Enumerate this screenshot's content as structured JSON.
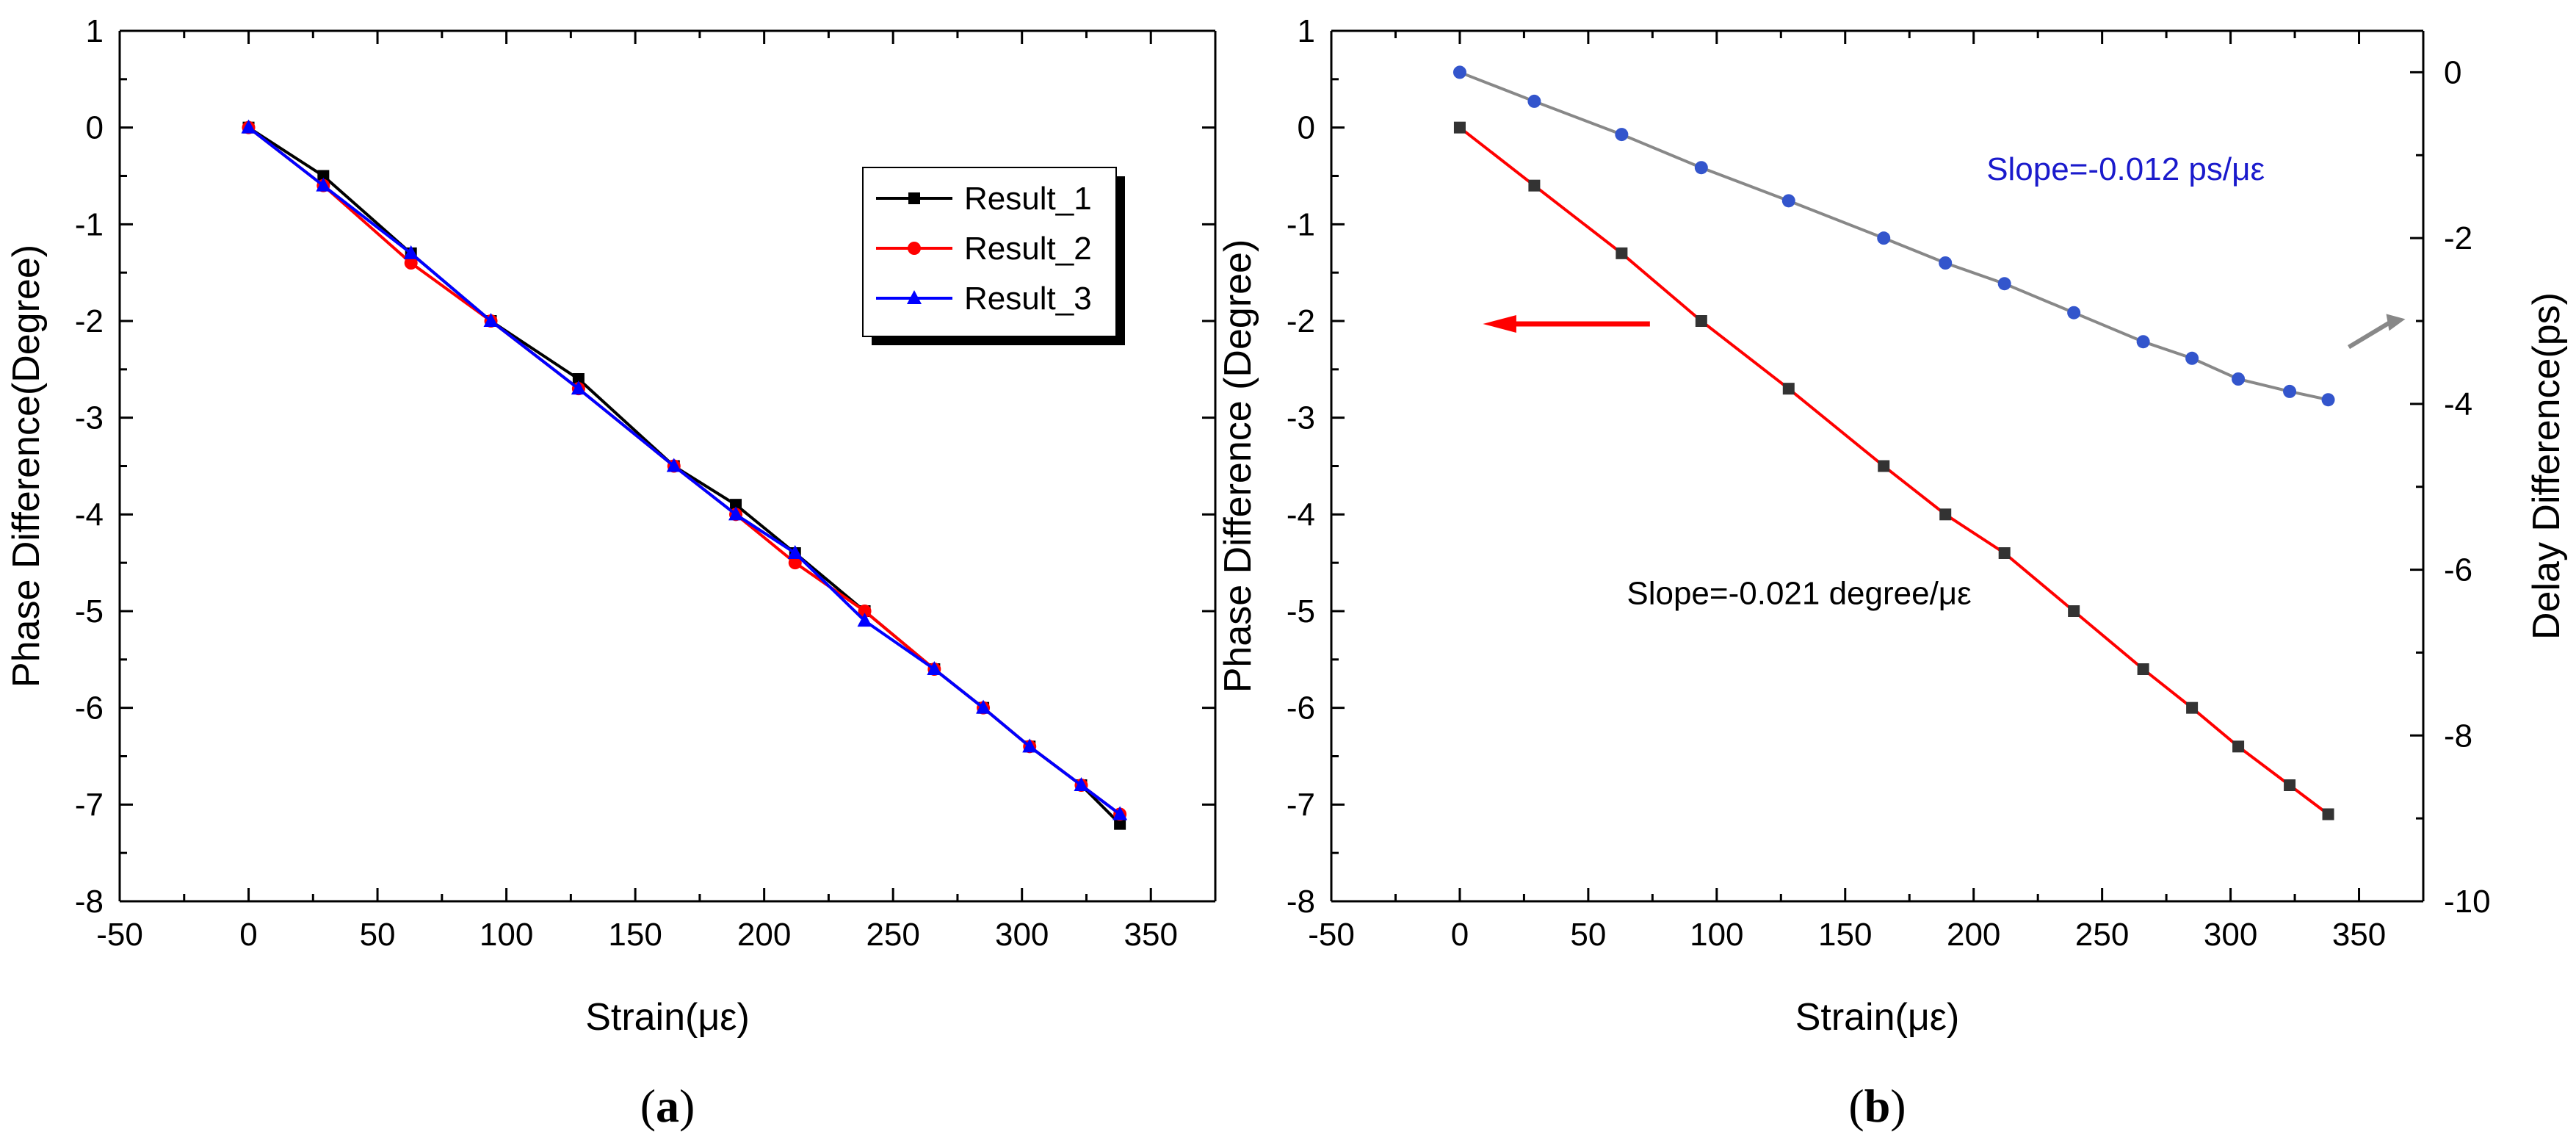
{
  "chart_data": [
    {
      "panel": "a",
      "panel_label": "(a)",
      "panel_label_letter": "a",
      "type": "line",
      "title": "",
      "xlabel": "Strain(με)",
      "ylabel": "Phase Difference(Degree)",
      "xlim": [
        -50,
        375
      ],
      "ylim": [
        -8,
        1
      ],
      "x_ticks": [
        -50,
        0,
        50,
        100,
        150,
        200,
        250,
        300,
        350
      ],
      "y_ticks": [
        1,
        0,
        -1,
        -2,
        -3,
        -4,
        -5,
        -6,
        -7,
        -8
      ],
      "grid": false,
      "legend": {
        "placement": "top-right",
        "shadow": true
      },
      "series": [
        {
          "name": "Result_1",
          "color": "#000000",
          "marker": "square",
          "x": [
            0,
            29,
            63,
            94,
            128,
            165,
            189,
            212,
            239,
            266,
            285,
            303,
            323,
            338
          ],
          "y": [
            0,
            -0.5,
            -1.3,
            -2.0,
            -2.6,
            -3.5,
            -3.9,
            -4.4,
            -5.0,
            -5.6,
            -6.0,
            -6.4,
            -6.8,
            -7.2
          ]
        },
        {
          "name": "Result_2",
          "color": "#ff0000",
          "marker": "circle",
          "x": [
            0,
            29,
            63,
            94,
            128,
            165,
            189,
            212,
            239,
            266,
            285,
            303,
            323,
            338
          ],
          "y": [
            0,
            -0.6,
            -1.4,
            -2.0,
            -2.7,
            -3.5,
            -4.0,
            -4.5,
            -5.0,
            -5.6,
            -6.0,
            -6.4,
            -6.8,
            -7.1
          ]
        },
        {
          "name": "Result_3",
          "color": "#0000ff",
          "marker": "triangle",
          "x": [
            0,
            29,
            63,
            94,
            128,
            165,
            189,
            212,
            239,
            266,
            285,
            303,
            323,
            338
          ],
          "y": [
            0,
            -0.6,
            -1.3,
            -2.0,
            -2.7,
            -3.5,
            -4.0,
            -4.4,
            -5.1,
            -5.6,
            -6.0,
            -6.4,
            -6.8,
            -7.1
          ]
        }
      ]
    },
    {
      "panel": "b",
      "panel_label": "(b)",
      "panel_label_letter": "b",
      "type": "line",
      "title": "",
      "xlabel": "Strain(με)",
      "ylabel": "Phase Difference (Degree)",
      "y2label": "Delay Difference(ps)",
      "xlim": [
        -50,
        375
      ],
      "ylim": [
        -8,
        1
      ],
      "y2lim": [
        -10,
        0.5
      ],
      "x_ticks": [
        -50,
        0,
        50,
        100,
        150,
        200,
        250,
        300,
        350
      ],
      "y_ticks": [
        1,
        0,
        -1,
        -2,
        -3,
        -4,
        -5,
        -6,
        -7,
        -8
      ],
      "y2_ticks": [
        0,
        -2,
        -4,
        -6,
        -8,
        -10
      ],
      "grid": false,
      "series": [
        {
          "axis": "left",
          "color": "#ff0000",
          "marker_color": "#333333",
          "marker": "square",
          "x": [
            0,
            29,
            63,
            94,
            128,
            165,
            189,
            212,
            239,
            266,
            285,
            303,
            323,
            338
          ],
          "y": [
            0,
            -0.6,
            -1.3,
            -2.0,
            -2.7,
            -3.5,
            -4.0,
            -4.4,
            -5.0,
            -5.6,
            -6.0,
            -6.4,
            -6.8,
            -7.1
          ]
        },
        {
          "axis": "right",
          "color": "#888888",
          "marker_color": "#3355cc",
          "marker": "circle",
          "x": [
            0,
            29,
            63,
            94,
            128,
            165,
            189,
            212,
            239,
            266,
            285,
            303,
            323,
            338
          ],
          "y": [
            0,
            -0.35,
            -0.75,
            -1.15,
            -1.55,
            -2.0,
            -2.3,
            -2.55,
            -2.9,
            -3.25,
            -3.45,
            -3.7,
            -3.85,
            -3.95
          ]
        }
      ],
      "annotations": [
        {
          "text": "Slope=-0.012 ps/με",
          "color": "#1a1acc"
        },
        {
          "text": "Slope=-0.021 degree/με",
          "color": "#000000"
        }
      ],
      "arrows": [
        {
          "points_to": "left-axis",
          "color": "#ff0000"
        },
        {
          "points_to": "right-axis",
          "color": "#888888"
        }
      ]
    }
  ]
}
